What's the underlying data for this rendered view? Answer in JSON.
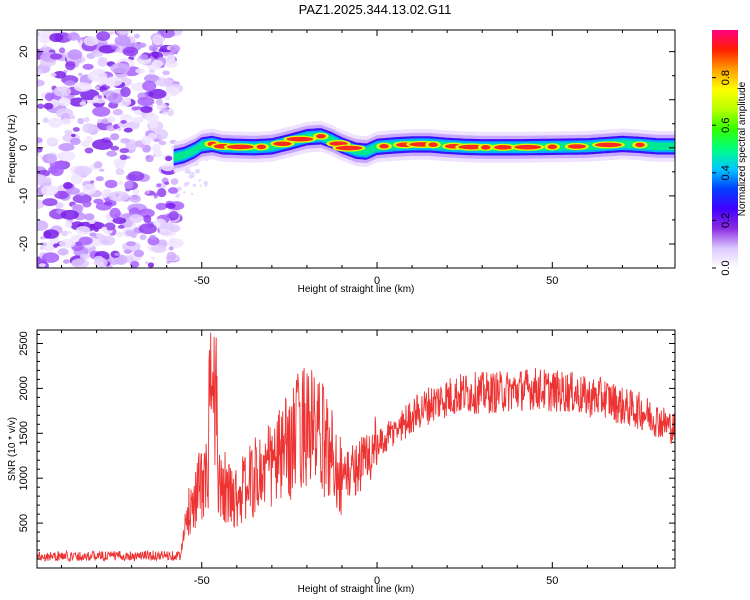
{
  "title": "PAZ1.2025.344.13.02.G11",
  "chart_data": [
    {
      "type": "heatmap",
      "xlabel": "Height of straight line (km)",
      "ylabel": "Frequency (Hz)",
      "xlim": [
        -97,
        85
      ],
      "ylim": [
        -25,
        24.5
      ],
      "xticks": [
        -50,
        0,
        50
      ],
      "xtick_labels": [
        "-50",
        "0",
        "50"
      ],
      "yticks": [
        20,
        10,
        0,
        -10,
        -20
      ],
      "ytick_labels": [
        "20",
        "10",
        "0",
        "-10",
        "-20"
      ],
      "ridge": {
        "x": [
          -58,
          -55,
          -52,
          -50,
          -47,
          -44,
          -40,
          -35,
          -30,
          -25,
          -20,
          -16,
          -13,
          -10,
          -6,
          -3,
          0,
          5,
          10,
          15,
          20,
          25,
          30,
          40,
          50,
          60,
          66,
          70,
          75,
          80,
          85
        ],
        "y": [
          -2.0,
          -1.5,
          -0.5,
          0.5,
          0.8,
          0.3,
          0.2,
          0.1,
          0.3,
          1.2,
          2.2,
          2.4,
          1.6,
          0.5,
          -0.6,
          -0.8,
          0.2,
          0.5,
          0.7,
          0.7,
          0.4,
          0.2,
          0.1,
          0.1,
          0.2,
          0.3,
          0.6,
          0.8,
          0.6,
          0.3,
          0.3
        ]
      },
      "hot_spots_x": [
        -47,
        -44,
        -39,
        -33,
        -27,
        -22,
        -16,
        -11,
        -8,
        2,
        8,
        13,
        16,
        22,
        27,
        31,
        36,
        43,
        50,
        57,
        66,
        75
      ],
      "noise_region_x": [
        -97,
        -57
      ]
    },
    {
      "type": "line",
      "xlabel": "Height of straight line (km)",
      "ylabel": "SNR (10 * v/v)",
      "xlim": [
        -97,
        85
      ],
      "ylim": [
        0,
        2650
      ],
      "xticks": [
        -50,
        0,
        50
      ],
      "xtick_labels": [
        "-50",
        "0",
        "50"
      ],
      "yticks": [
        500,
        1000,
        1500,
        2000,
        2500
      ],
      "ytick_labels": [
        "500",
        "1000",
        "1500",
        "2000",
        "2500"
      ],
      "color": "#ee3333",
      "envelope": {
        "x": [
          -97,
          -56,
          -54,
          -52,
          -50,
          -48,
          -46,
          -44,
          -42,
          -40,
          -35,
          -30,
          -25,
          -22,
          -20,
          -18,
          -15,
          -12,
          -10,
          -5,
          0,
          5,
          10,
          15,
          20,
          25,
          30,
          35,
          40,
          45,
          50,
          55,
          60,
          65,
          70,
          75,
          80,
          85
        ],
        "y": [
          130,
          140,
          600,
          800,
          950,
          1000,
          1050,
          950,
          800,
          800,
          1000,
          1150,
          1350,
          1550,
          1650,
          1500,
          1400,
          1200,
          1000,
          1150,
          1350,
          1520,
          1700,
          1820,
          1900,
          1950,
          1950,
          1960,
          1980,
          2000,
          1970,
          1960,
          1900,
          1900,
          1800,
          1750,
          1650,
          1550
        ]
      },
      "spike": {
        "x": -46.5,
        "y": 2700
      }
    }
  ],
  "colorbar": {
    "label": "Normalized spectral amplitude",
    "range": [
      0.0,
      1.0
    ],
    "ticks": [
      0.0,
      0.2,
      0.4,
      0.6,
      0.8
    ],
    "tick_labels": [
      "0.0",
      "0.2",
      "0.4",
      "0.6",
      "0.8"
    ],
    "stops": [
      "#ffffff",
      "#dcc8ff",
      "#8a2be2",
      "#4000ff",
      "#0040ff",
      "#00c8ff",
      "#00ff80",
      "#33ff00",
      "#b8ff00",
      "#ffff00",
      "#ffa000",
      "#ff2000",
      "#ff0080"
    ]
  }
}
